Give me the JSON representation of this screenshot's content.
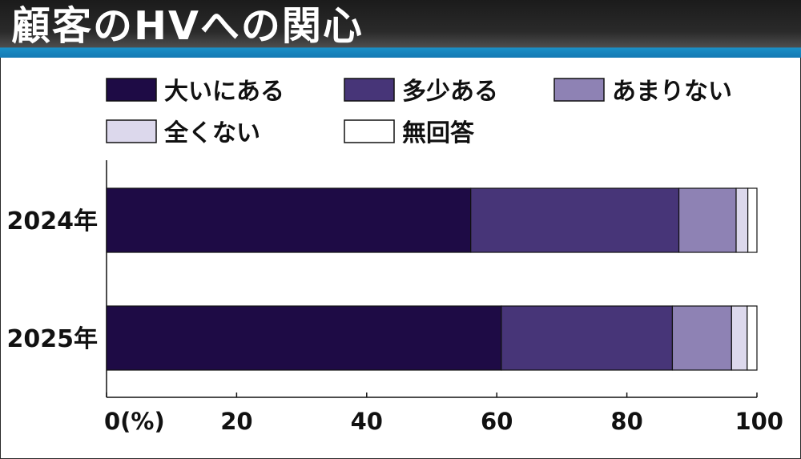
{
  "header": {
    "title": "顧客のHVへの関心"
  },
  "chart_data": {
    "type": "bar",
    "orientation": "horizontal",
    "stacked": true,
    "categories": [
      "2024年",
      "2025年"
    ],
    "series": [
      {
        "name": "大いにある",
        "color": "#1e0b45",
        "values": [
          56,
          60.7
        ]
      },
      {
        "name": "多少ある",
        "color": "#473578",
        "values": [
          32,
          26.3
        ]
      },
      {
        "name": "あまりない",
        "color": "#8e82b4",
        "values": [
          8.8,
          9.1
        ]
      },
      {
        "name": "全くない",
        "color": "#dcd8ec",
        "values": [
          1.8,
          2.4
        ]
      },
      {
        "name": "無回答",
        "color": "#ffffff",
        "values": [
          1.4,
          1.5
        ]
      }
    ],
    "xlim": [
      0,
      100
    ],
    "x_ticks": [
      "0(%)",
      "20",
      "40",
      "60",
      "80",
      "100"
    ],
    "grid": false,
    "legend_position": "top"
  }
}
